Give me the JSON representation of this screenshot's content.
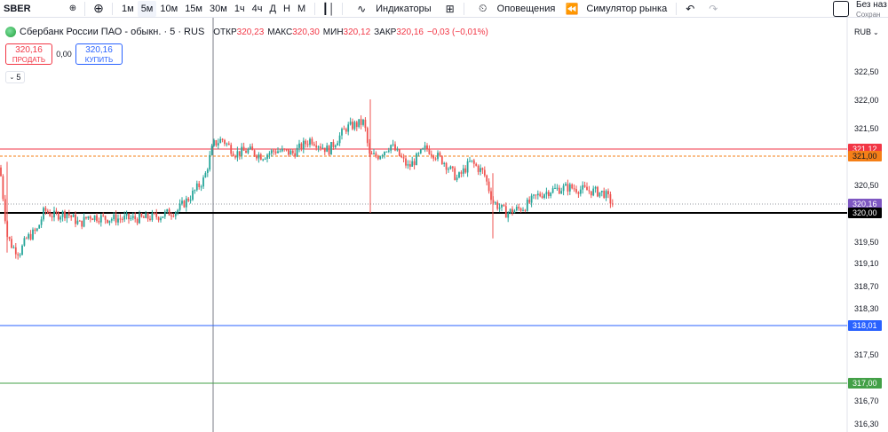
{
  "toolbar": {
    "symbol": "SBER",
    "intervals": [
      "1м",
      "5м",
      "10м",
      "15м",
      "30м",
      "1ч",
      "4ч",
      "Д",
      "Н",
      "М"
    ],
    "active_interval_index": 1,
    "indicators_label": "Индикаторы",
    "alerts_label": "Оповещения",
    "replay_label": "Симулятор рынка",
    "layout_name": "Без наз",
    "layout_status": "Сохран"
  },
  "legend": {
    "title": "Сбербанк России ПАО - обыкн. · 5 · RUS",
    "open_label": "ОТКР",
    "open_value": "320,23",
    "high_label": "МАКС",
    "high_value": "320,30",
    "low_label": "МИН",
    "low_value": "320,12",
    "close_label": "ЗАКР",
    "close_value": "320,16",
    "change": "−0,03 (−0,01%)"
  },
  "trade": {
    "sell_price": "320,16",
    "sell_label": "ПРОДАТЬ",
    "spread": "0,00",
    "buy_price": "320,16",
    "buy_label": "КУПИТЬ"
  },
  "interval_tag": "5",
  "price_axis": {
    "currency": "RUB",
    "ticks": [
      "322,50",
      "322,00",
      "321,50",
      "320,50",
      "319,50",
      "319,10",
      "318,70",
      "318,30",
      "317,50",
      "316,70",
      "316,30"
    ]
  },
  "price_lines": [
    {
      "price": "321,12",
      "color": "#f23645"
    },
    {
      "price": "321,00",
      "color": "#f57f17"
    },
    {
      "price": "320,16",
      "color": "#7e57c2"
    },
    {
      "price": "320,00",
      "color": "#000000"
    },
    {
      "price": "318,01",
      "color": "#2962ff"
    },
    {
      "price": "317,00",
      "color": "#43a047"
    }
  ],
  "colors": {
    "up": "#26a69a",
    "down": "#ef5350"
  }
}
